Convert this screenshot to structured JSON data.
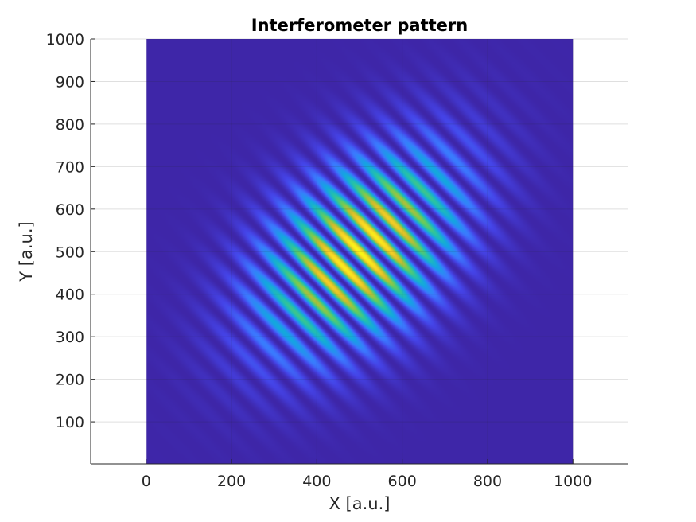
{
  "chart_data": {
    "type": "heatmap",
    "title": "Interferometer pattern",
    "xlabel": "X [a.u.]",
    "ylabel": "Y [a.u.]",
    "xlim": [
      -130,
      1130
    ],
    "ylim": [
      1,
      1000
    ],
    "image_extent": {
      "x": [
        1,
        1000
      ],
      "y": [
        1,
        1000
      ]
    },
    "x_ticks": [
      0,
      200,
      400,
      600,
      800,
      1000
    ],
    "x_tick_labels": [
      "0",
      "200",
      "400",
      "600",
      "800",
      "1000"
    ],
    "y_ticks": [
      100,
      200,
      300,
      400,
      500,
      600,
      700,
      800,
      900,
      1000
    ],
    "y_tick_labels": [
      "100",
      "200",
      "300",
      "400",
      "500",
      "600",
      "700",
      "800",
      "900",
      "1000"
    ],
    "grid": true,
    "colormap": "parula",
    "colormap_stops": [
      "#3e26a8",
      "#4543e7",
      "#3b7aff",
      "#13a6e1",
      "#25c1aa",
      "#67cc5c",
      "#d0ba2b",
      "#f9d325",
      "#f9fb14"
    ],
    "pattern": {
      "description_type": "gaussian-enveloped fringes",
      "center": [
        500,
        500
      ],
      "envelope_sigma": [
        120,
        190
      ],
      "envelope_angle_deg": -45,
      "fringe_period": 52,
      "fringe_angle_deg": 45
    }
  }
}
